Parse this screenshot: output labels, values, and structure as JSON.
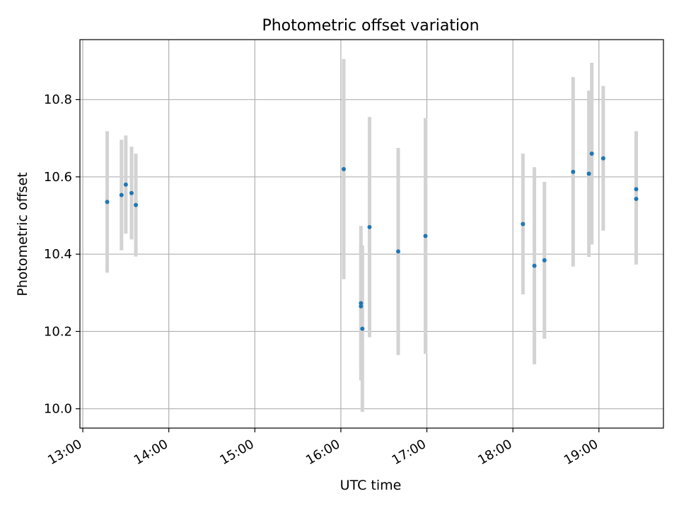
{
  "chart_data": {
    "type": "scatter",
    "title": "Photometric offset variation",
    "xlabel": "UTC time",
    "ylabel": "Photometric offset",
    "xlim": [
      "12:58",
      "19:45"
    ],
    "ylim": [
      9.95,
      10.955
    ],
    "grid": true,
    "x_ticks": [
      "13:00",
      "14:00",
      "15:00",
      "16:00",
      "17:00",
      "18:00",
      "19:00"
    ],
    "y_ticks": [
      "10.0",
      "10.2",
      "10.4",
      "10.6",
      "10.8"
    ],
    "colors": {
      "points": "#1f77b4",
      "errorbars": "#d3d3d3",
      "grid": "#b0b0b0"
    },
    "points": [
      {
        "time": "13:17",
        "y": 10.535,
        "err": 0.183
      },
      {
        "time": "13:27",
        "y": 10.553,
        "err": 0.143
      },
      {
        "time": "13:30",
        "y": 10.58,
        "err": 0.127
      },
      {
        "time": "13:34",
        "y": 10.558,
        "err": 0.12
      },
      {
        "time": "13:37",
        "y": 10.527,
        "err": 0.133
      },
      {
        "time": "16:02",
        "y": 10.62,
        "err": 0.285
      },
      {
        "time": "16:14",
        "y": 10.273,
        "err": 0.2
      },
      {
        "time": "16:14",
        "y": 10.265,
        "err": 0.16
      },
      {
        "time": "16:15",
        "y": 10.207,
        "err": 0.215
      },
      {
        "time": "16:20",
        "y": 10.47,
        "err": 0.285
      },
      {
        "time": "16:40",
        "y": 10.407,
        "err": 0.268
      },
      {
        "time": "16:59",
        "y": 10.447,
        "err": 0.305
      },
      {
        "time": "18:07",
        "y": 10.478,
        "err": 0.182
      },
      {
        "time": "18:15",
        "y": 10.37,
        "err": 0.255
      },
      {
        "time": "18:22",
        "y": 10.384,
        "err": 0.203
      },
      {
        "time": "18:42",
        "y": 10.613,
        "err": 0.245
      },
      {
        "time": "18:53",
        "y": 10.608,
        "err": 0.215
      },
      {
        "time": "18:55",
        "y": 10.66,
        "err": 0.235
      },
      {
        "time": "19:03",
        "y": 10.648,
        "err": 0.187
      },
      {
        "time": "19:26",
        "y": 10.568,
        "err": 0.15
      },
      {
        "time": "19:26",
        "y": 10.543,
        "err": 0.17
      }
    ]
  }
}
